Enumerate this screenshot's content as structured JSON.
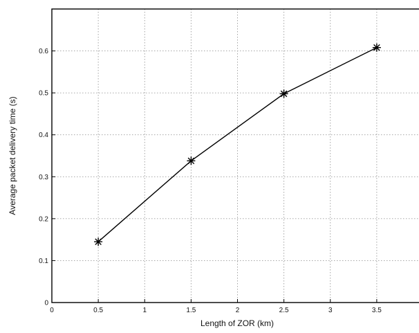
{
  "chart_data": {
    "type": "line",
    "title": "",
    "xlabel": "Length of ZOR (km)",
    "ylabel": "Average packet delivery time (s)",
    "xlim": [
      0,
      4
    ],
    "ylim": [
      0,
      0.7
    ],
    "xticks": [
      "0",
      "0.5",
      "1",
      "1.5",
      "2",
      "2.5",
      "3",
      "3.5"
    ],
    "yticks": [
      "0",
      "0.1",
      "0.2",
      "0.3",
      "0.4",
      "0.5",
      "0.6"
    ],
    "grid": true,
    "series": [
      {
        "marker": "asterisk",
        "color": "#000000",
        "x": [
          0.5,
          1.5,
          2.5,
          3.5
        ],
        "y": [
          0.145,
          0.338,
          0.498,
          0.608
        ]
      }
    ]
  }
}
